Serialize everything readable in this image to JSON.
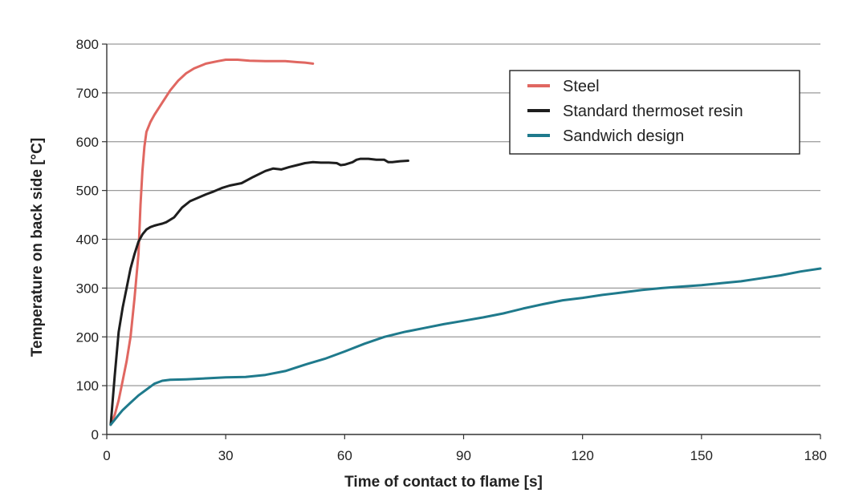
{
  "chart_data": {
    "type": "line",
    "title": "",
    "xlabel": "Time of contact to flame [s]",
    "ylabel": "Temperature on back side [°C]",
    "xlim": [
      0,
      180
    ],
    "ylim": [
      0,
      800
    ],
    "xticks": [
      0,
      30,
      60,
      90,
      120,
      150,
      180
    ],
    "xtick_labels": [
      "0",
      "30",
      "60",
      "90",
      "120",
      "150",
      "180"
    ],
    "yticks": [
      0,
      100,
      200,
      300,
      400,
      500,
      600,
      700,
      800
    ],
    "ytick_labels": [
      "0",
      "100",
      "200",
      "300",
      "400",
      "500",
      "600",
      "700",
      "800"
    ],
    "grid": "horizontal",
    "legend_position": "top-right",
    "series": [
      {
        "name": "Steel",
        "color": "#e06761",
        "x": [
          1,
          2,
          3,
          4,
          5,
          6,
          7,
          8,
          8.5,
          9,
          9.5,
          10,
          11,
          12,
          14,
          16,
          18,
          20,
          22,
          25,
          28,
          30,
          33,
          36,
          40,
          45,
          48,
          50,
          52
        ],
        "y": [
          20,
          40,
          70,
          110,
          150,
          200,
          280,
          370,
          470,
          540,
          590,
          620,
          640,
          655,
          680,
          705,
          725,
          740,
          750,
          760,
          765,
          768,
          768,
          766,
          765,
          765,
          763,
          762,
          760
        ]
      },
      {
        "name": "Standard thermoset resin",
        "color": "#1e1e1e",
        "x": [
          1,
          2,
          3,
          4,
          5,
          6,
          7,
          8,
          9,
          10,
          11,
          12,
          13,
          14,
          15,
          17,
          19,
          21,
          23,
          25,
          27,
          29,
          31,
          34,
          37,
          40,
          42,
          44,
          46,
          48,
          50,
          52,
          54,
          56,
          58,
          59,
          60,
          62,
          63,
          64,
          66,
          68,
          69,
          70,
          71,
          72,
          74,
          76
        ],
        "y": [
          20,
          120,
          210,
          260,
          300,
          340,
          370,
          395,
          410,
          420,
          425,
          428,
          430,
          432,
          435,
          445,
          465,
          478,
          485,
          492,
          498,
          505,
          510,
          515,
          528,
          540,
          545,
          543,
          548,
          552,
          556,
          558,
          557,
          557,
          556,
          552,
          553,
          558,
          563,
          565,
          565,
          563,
          563,
          563,
          558,
          558,
          560,
          561
        ]
      },
      {
        "name": "Sandwich design",
        "color": "#1f7a8c",
        "x": [
          1,
          2,
          3,
          4,
          6,
          8,
          10,
          12,
          14,
          16,
          20,
          25,
          30,
          35,
          40,
          45,
          50,
          55,
          60,
          65,
          70,
          75,
          80,
          85,
          90,
          95,
          100,
          105,
          110,
          115,
          120,
          125,
          130,
          135,
          140,
          145,
          150,
          155,
          160,
          165,
          170,
          175,
          180
        ],
        "y": [
          20,
          30,
          40,
          50,
          65,
          80,
          92,
          104,
          110,
          112,
          113,
          115,
          117,
          118,
          122,
          130,
          143,
          155,
          170,
          186,
          200,
          210,
          218,
          226,
          233,
          240,
          248,
          258,
          267,
          275,
          280,
          286,
          291,
          296,
          300,
          303,
          306,
          310,
          314,
          320,
          326,
          334,
          340
        ]
      }
    ]
  }
}
